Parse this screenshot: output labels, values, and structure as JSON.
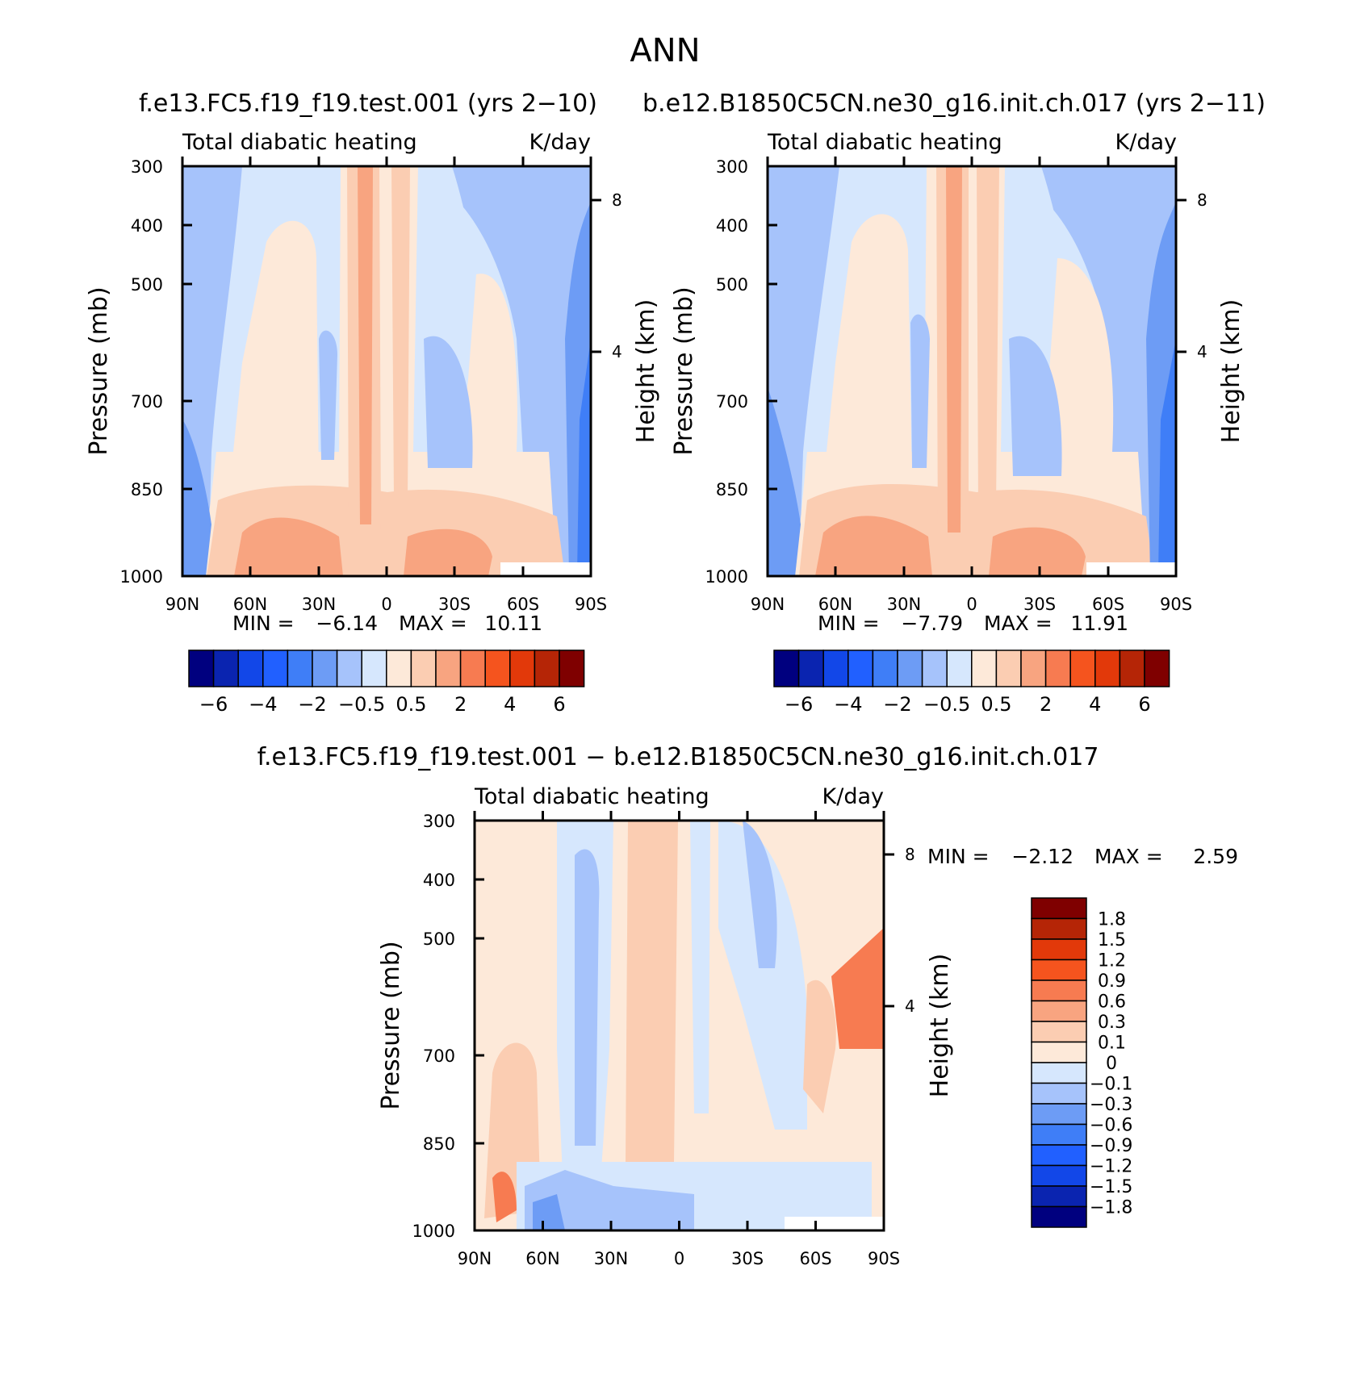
{
  "figure": {
    "title": "ANN"
  },
  "chart_data": [
    {
      "type": "heatmap",
      "title": "f.e13.FC5.f19_f19.test.001 (yrs 2−10)",
      "variable": "Total diabatic heating",
      "units": "K/day",
      "ylabel": "Pressure (mb)",
      "ylabel2": "Height (km)",
      "x_ticks": [
        "90N",
        "60N",
        "30N",
        "0",
        "30S",
        "60S",
        "90S"
      ],
      "y_ticks": [
        {
          "label": "300",
          "value": 300
        },
        {
          "label": "400",
          "value": 400
        },
        {
          "label": "500",
          "value": 500
        },
        {
          "label": "700",
          "value": 700
        },
        {
          "label": "850",
          "value": 850
        },
        {
          "label": "1000",
          "value": 1000
        }
      ],
      "height_ticks": [
        {
          "label": "8",
          "value": 8
        },
        {
          "label": "4",
          "value": 4
        }
      ],
      "ylim": [
        300,
        1000
      ],
      "min_label": "MIN =",
      "min_value": "−6.14",
      "max_label": "MAX =",
      "max_value": "10.11",
      "colorbar_labels": [
        "−6",
        "−4",
        "−2",
        "−0.5",
        "0.5",
        "2",
        "4",
        "6"
      ],
      "colorbar_colors": [
        "#00007f",
        "#0a24b0",
        "#1247e8",
        "#2160ff",
        "#3f7ef7",
        "#6d9cf5",
        "#a6c3fb",
        "#d6e7fd",
        "#fde9d9",
        "#fbcdb2",
        "#f8a480",
        "#f77b51",
        "#f5541e",
        "#e2390a",
        "#b52506",
        "#7f0000"
      ]
    },
    {
      "type": "heatmap",
      "title": "b.e12.B1850C5CN.ne30_g16.init.ch.017 (yrs 2−11)",
      "variable": "Total diabatic heating",
      "units": "K/day",
      "ylabel": "Pressure (mb)",
      "ylabel2": "Height (km)",
      "x_ticks": [
        "90N",
        "60N",
        "30N",
        "0",
        "30S",
        "60S",
        "90S"
      ],
      "y_ticks": [
        {
          "label": "300",
          "value": 300
        },
        {
          "label": "400",
          "value": 400
        },
        {
          "label": "500",
          "value": 500
        },
        {
          "label": "700",
          "value": 700
        },
        {
          "label": "850",
          "value": 850
        },
        {
          "label": "1000",
          "value": 1000
        }
      ],
      "height_ticks": [
        {
          "label": "8",
          "value": 8
        },
        {
          "label": "4",
          "value": 4
        }
      ],
      "ylim": [
        300,
        1000
      ],
      "min_label": "MIN =",
      "min_value": "−7.79",
      "max_label": "MAX =",
      "max_value": "11.91",
      "colorbar_labels": [
        "−6",
        "−4",
        "−2",
        "−0.5",
        "0.5",
        "2",
        "4",
        "6"
      ],
      "colorbar_colors": [
        "#00007f",
        "#0a24b0",
        "#1247e8",
        "#2160ff",
        "#3f7ef7",
        "#6d9cf5",
        "#a6c3fb",
        "#d6e7fd",
        "#fde9d9",
        "#fbcdb2",
        "#f8a480",
        "#f77b51",
        "#f5541e",
        "#e2390a",
        "#b52506",
        "#7f0000"
      ]
    },
    {
      "type": "heatmap",
      "title": "f.e13.FC5.f19_f19.test.001 − b.e12.B1850C5CN.ne30_g16.init.ch.017",
      "variable": "Total diabatic heating",
      "units": "K/day",
      "ylabel": "Pressure (mb)",
      "ylabel2": "Height (km)",
      "x_ticks": [
        "90N",
        "60N",
        "30N",
        "0",
        "30S",
        "60S",
        "90S"
      ],
      "y_ticks": [
        {
          "label": "300",
          "value": 300
        },
        {
          "label": "400",
          "value": 400
        },
        {
          "label": "500",
          "value": 500
        },
        {
          "label": "700",
          "value": 700
        },
        {
          "label": "850",
          "value": 850
        },
        {
          "label": "1000",
          "value": 1000
        }
      ],
      "height_ticks": [
        {
          "label": "8",
          "value": 8
        },
        {
          "label": "4",
          "value": 4
        }
      ],
      "ylim": [
        300,
        1000
      ],
      "min_label": "MIN =",
      "min_value": "−2.12",
      "max_label": "MAX =",
      "max_value": "2.59",
      "colorbar_labels": [
        "1.8",
        "1.5",
        "1.2",
        "0.9",
        "0.6",
        "0.3",
        "0.1",
        "0",
        "−0.1",
        "−0.3",
        "−0.6",
        "−0.9",
        "−1.2",
        "−1.5",
        "−1.8"
      ],
      "colorbar_colors": [
        "#7f0000",
        "#b52506",
        "#e2390a",
        "#f5541e",
        "#f77b51",
        "#f8a480",
        "#fbcdb2",
        "#fde9d9",
        "#d6e7fd",
        "#a6c3fb",
        "#6d9cf5",
        "#3f7ef7",
        "#2160ff",
        "#1247e8",
        "#0a24b0",
        "#00007f"
      ]
    }
  ]
}
